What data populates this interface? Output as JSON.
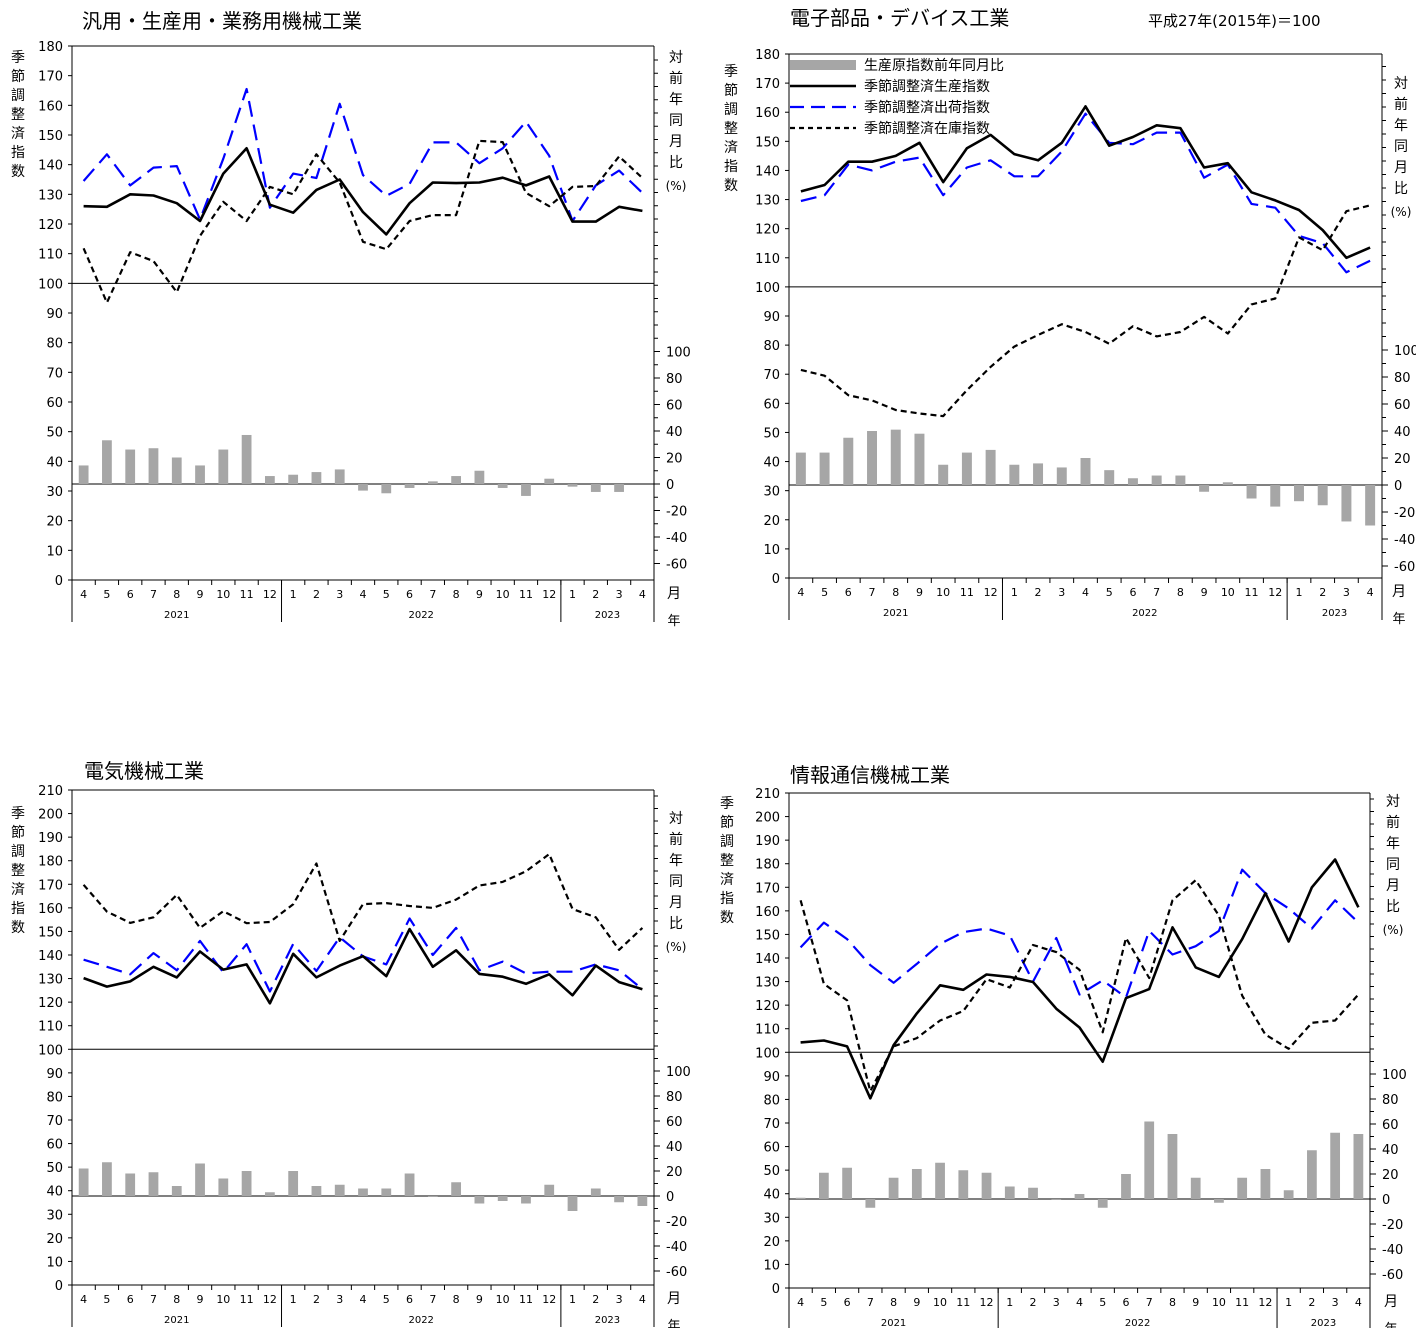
{
  "base_label": "平成27年(2015年)＝100",
  "legend": {
    "bar": "生産原指数前年同月比",
    "production": "季節調整済生産指数",
    "shipment": "季節調整済出荷指数",
    "inventory": "季節調整済在庫指数"
  },
  "axis_text": {
    "left_title": "季節調整済指数",
    "right_title": "対前年同月比",
    "right_unit": "(%)",
    "month_unit": "月",
    "year_unit": "年"
  },
  "colors": {
    "production": "#000000",
    "shipment": "#0000ff",
    "inventory": "#000000",
    "bar": "#a6a6a6"
  },
  "chart_data": [
    {
      "type": "line",
      "title": "汎用・生産用・業務用機械工業",
      "months": [
        "4",
        "5",
        "6",
        "7",
        "8",
        "9",
        "10",
        "11",
        "12",
        "1",
        "2",
        "3",
        "4",
        "5",
        "6",
        "7",
        "8",
        "9",
        "10",
        "11",
        "12",
        "1",
        "2",
        "3",
        "4"
      ],
      "years": [
        {
          "label": "2021",
          "count": 9
        },
        {
          "label": "2022",
          "count": 12
        },
        {
          "label": "2023",
          "count": 4
        }
      ],
      "ylim": [
        0,
        180
      ],
      "yticks": [
        0,
        10,
        20,
        30,
        40,
        50,
        60,
        70,
        80,
        90,
        100,
        110,
        120,
        130,
        140,
        150,
        160,
        170,
        180
      ],
      "y2ticks": [
        -60,
        -40,
        -20,
        0,
        20,
        40,
        60,
        80,
        100
      ],
      "series": [
        {
          "name": "季節調整済生産指数",
          "values": [
            126,
            125.8,
            130,
            129.6,
            127,
            121,
            137,
            145.5,
            126.5,
            123.8,
            131.5,
            135,
            124,
            116.5,
            127,
            134,
            133.8,
            134,
            135.6,
            133,
            136,
            120.8,
            120.8,
            125.8,
            124.4
          ]
        },
        {
          "name": "季節調整済出荷指数",
          "values": [
            134.5,
            143.5,
            133,
            139,
            139.5,
            121.5,
            142,
            165.5,
            125.5,
            137,
            135.5,
            160.5,
            136.5,
            129.5,
            133.5,
            147.5,
            147.5,
            140.5,
            145.5,
            154.5,
            143,
            121,
            133,
            138,
            130.5
          ]
        },
        {
          "name": "季節調整済在庫指数",
          "values": [
            111.8,
            93.5,
            110.5,
            107.5,
            97,
            116,
            127.5,
            121,
            132.5,
            130,
            143.5,
            134,
            114,
            111.5,
            121,
            123,
            123,
            148,
            147.6,
            130.5,
            126,
            132.5,
            132.8,
            142.8,
            135.5
          ]
        },
        {
          "name": "生産原指数前年同月比",
          "values": [
            14,
            33,
            26,
            27,
            20,
            14,
            26,
            37,
            6,
            7,
            9,
            11,
            -5,
            -7,
            -3,
            2,
            6,
            10,
            -3,
            -9,
            4,
            -2,
            -6,
            -6,
            null
          ]
        }
      ]
    },
    {
      "type": "line",
      "title": "電子部品・デバイス工業",
      "months": [
        "4",
        "5",
        "6",
        "7",
        "8",
        "9",
        "10",
        "11",
        "12",
        "1",
        "2",
        "3",
        "4",
        "5",
        "6",
        "7",
        "8",
        "9",
        "10",
        "11",
        "12",
        "1",
        "2",
        "3",
        "4"
      ],
      "years": [
        {
          "label": "2021",
          "count": 9
        },
        {
          "label": "2022",
          "count": 12
        },
        {
          "label": "2023",
          "count": 4
        }
      ],
      "ylim": [
        0,
        180
      ],
      "yticks": [
        0,
        10,
        20,
        30,
        40,
        50,
        60,
        70,
        80,
        90,
        100,
        110,
        120,
        130,
        140,
        150,
        160,
        170,
        180
      ],
      "y2ticks": [
        -60,
        -40,
        -20,
        0,
        20,
        40,
        60,
        80,
        100
      ],
      "series": [
        {
          "name": "季節調整済生産指数",
          "values": [
            132.8,
            135,
            143,
            143,
            145,
            149.5,
            136,
            147.6,
            152.2,
            145.6,
            143.5,
            149.5,
            162,
            148.5,
            151.5,
            155.5,
            154.5,
            141,
            142.5,
            132.5,
            129.7,
            126.4,
            119.5,
            110,
            113.5
          ]
        },
        {
          "name": "季節調整済出荷指数",
          "values": [
            129.5,
            131.5,
            142,
            140,
            143,
            144.4,
            131.5,
            141,
            143.5,
            138,
            138,
            146.5,
            159.5,
            149.5,
            149,
            153,
            153,
            137.5,
            142,
            128.5,
            127.2,
            117.5,
            115,
            105,
            109
          ]
        },
        {
          "name": "季節調整済在庫指数",
          "values": [
            71.5,
            69.5,
            62.8,
            61,
            57.7,
            56.5,
            55.6,
            64.5,
            72.5,
            79.5,
            83.5,
            87.2,
            84.5,
            80.5,
            86.5,
            83,
            84.5,
            89.7,
            84,
            94,
            96,
            117,
            112.6,
            126,
            128
          ]
        },
        {
          "name": "生産原指数前年同月比",
          "values": [
            24,
            24,
            35,
            40,
            41,
            38,
            15,
            24,
            26,
            15,
            16,
            13,
            20,
            11,
            5,
            7,
            7,
            -5,
            2,
            -10,
            -16,
            -12,
            -15,
            -27,
            -30
          ]
        }
      ]
    },
    {
      "type": "line",
      "title": "電気機械工業",
      "months": [
        "4",
        "5",
        "6",
        "7",
        "8",
        "9",
        "10",
        "11",
        "12",
        "1",
        "2",
        "3",
        "4",
        "5",
        "6",
        "7",
        "8",
        "9",
        "10",
        "11",
        "12",
        "1",
        "2",
        "3",
        "4"
      ],
      "years": [
        {
          "label": "2021",
          "count": 9
        },
        {
          "label": "2022",
          "count": 12
        },
        {
          "label": "2023",
          "count": 4
        }
      ],
      "ylim": [
        0,
        210
      ],
      "yticks": [
        0,
        10,
        20,
        30,
        40,
        50,
        60,
        70,
        80,
        90,
        100,
        110,
        120,
        130,
        140,
        150,
        160,
        170,
        180,
        190,
        200,
        210
      ],
      "y2ticks": [
        -60,
        -40,
        -20,
        0,
        20,
        40,
        60,
        80,
        100
      ],
      "series": [
        {
          "name": "季節調整済生産指数",
          "values": [
            130.2,
            126.6,
            128.8,
            135,
            130.5,
            141.5,
            133.8,
            136,
            119.5,
            140.5,
            130.5,
            135.5,
            139.5,
            131,
            151,
            135,
            142,
            132,
            130.8,
            127.8,
            131.8,
            122.9,
            135.5,
            128.5,
            125.5
          ]
        },
        {
          "name": "季節調整済出荷指数",
          "values": [
            138,
            135,
            131.8,
            140.8,
            133.5,
            146,
            132.6,
            144.6,
            124.5,
            144.7,
            133.2,
            147.5,
            139.4,
            136,
            155.5,
            140,
            151.5,
            133.5,
            137.2,
            132.2,
            132.9,
            132.9,
            136,
            133.5,
            125.5
          ]
        },
        {
          "name": "季節調整済在庫指数",
          "values": [
            169.8,
            158.4,
            153.6,
            156,
            165.5,
            151.5,
            158.6,
            153.5,
            154,
            161.5,
            178.8,
            146,
            161.6,
            162,
            160.8,
            160,
            163.5,
            169.5,
            171,
            175.5,
            182.8,
            159.5,
            156,
            142.2,
            151.5
          ]
        },
        {
          "name": "生産原指数前年同月比",
          "values": [
            22,
            27,
            18,
            19,
            8,
            26,
            14,
            20,
            3,
            20,
            8,
            9,
            6,
            6,
            18,
            0,
            11,
            -6,
            -4,
            -6,
            9,
            -12,
            6,
            -5,
            -8
          ]
        }
      ]
    },
    {
      "type": "line",
      "title": "情報通信機械工業",
      "months": [
        "4",
        "5",
        "6",
        "7",
        "8",
        "9",
        "10",
        "11",
        "12",
        "1",
        "2",
        "3",
        "4",
        "5",
        "6",
        "7",
        "8",
        "9",
        "10",
        "11",
        "12",
        "1",
        "2",
        "3",
        "4"
      ],
      "years": [
        {
          "label": "2021",
          "count": 9
        },
        {
          "label": "2022",
          "count": 12
        },
        {
          "label": "2023",
          "count": 4
        }
      ],
      "ylim": [
        0,
        210
      ],
      "yticks": [
        0,
        10,
        20,
        30,
        40,
        50,
        60,
        70,
        80,
        90,
        100,
        110,
        120,
        130,
        140,
        150,
        160,
        170,
        180,
        190,
        200,
        210
      ],
      "y2ticks": [
        -60,
        -40,
        -20,
        0,
        20,
        40,
        60,
        80,
        100
      ],
      "series": [
        {
          "name": "季節調整済生産指数",
          "values": [
            104.2,
            105,
            102.5,
            80.5,
            103,
            116.5,
            128.4,
            126.5,
            133,
            132,
            129.8,
            118.5,
            110.5,
            96,
            123,
            126.8,
            153,
            136,
            132,
            148,
            167.5,
            147,
            170,
            181.8,
            161.5
          ]
        },
        {
          "name": "季節調整済出荷指数",
          "values": [
            144.5,
            155,
            148,
            137,
            129.5,
            137.5,
            146,
            151,
            152.5,
            149.5,
            130,
            148.5,
            124.5,
            130.5,
            123.3,
            151.5,
            141.5,
            145,
            151.5,
            177.5,
            167.5,
            161,
            152.5,
            164.5,
            155
          ]
        },
        {
          "name": "季節調整済在庫指数",
          "values": [
            164.5,
            129,
            122,
            83.5,
            102.5,
            106,
            113.5,
            117.5,
            131,
            127.5,
            145.5,
            142.5,
            135,
            108.5,
            148.5,
            131.5,
            164.5,
            173,
            158,
            124,
            107.5,
            101.5,
            112.5,
            113.5,
            124.5
          ]
        },
        {
          "name": "生産原指数前年同月比",
          "values": [
            1,
            21,
            25,
            -7,
            17,
            24,
            29,
            23,
            21,
            10,
            9,
            0,
            4,
            -7,
            20,
            62,
            52,
            17,
            -3,
            17,
            24,
            7,
            39,
            53,
            52
          ]
        }
      ]
    }
  ]
}
